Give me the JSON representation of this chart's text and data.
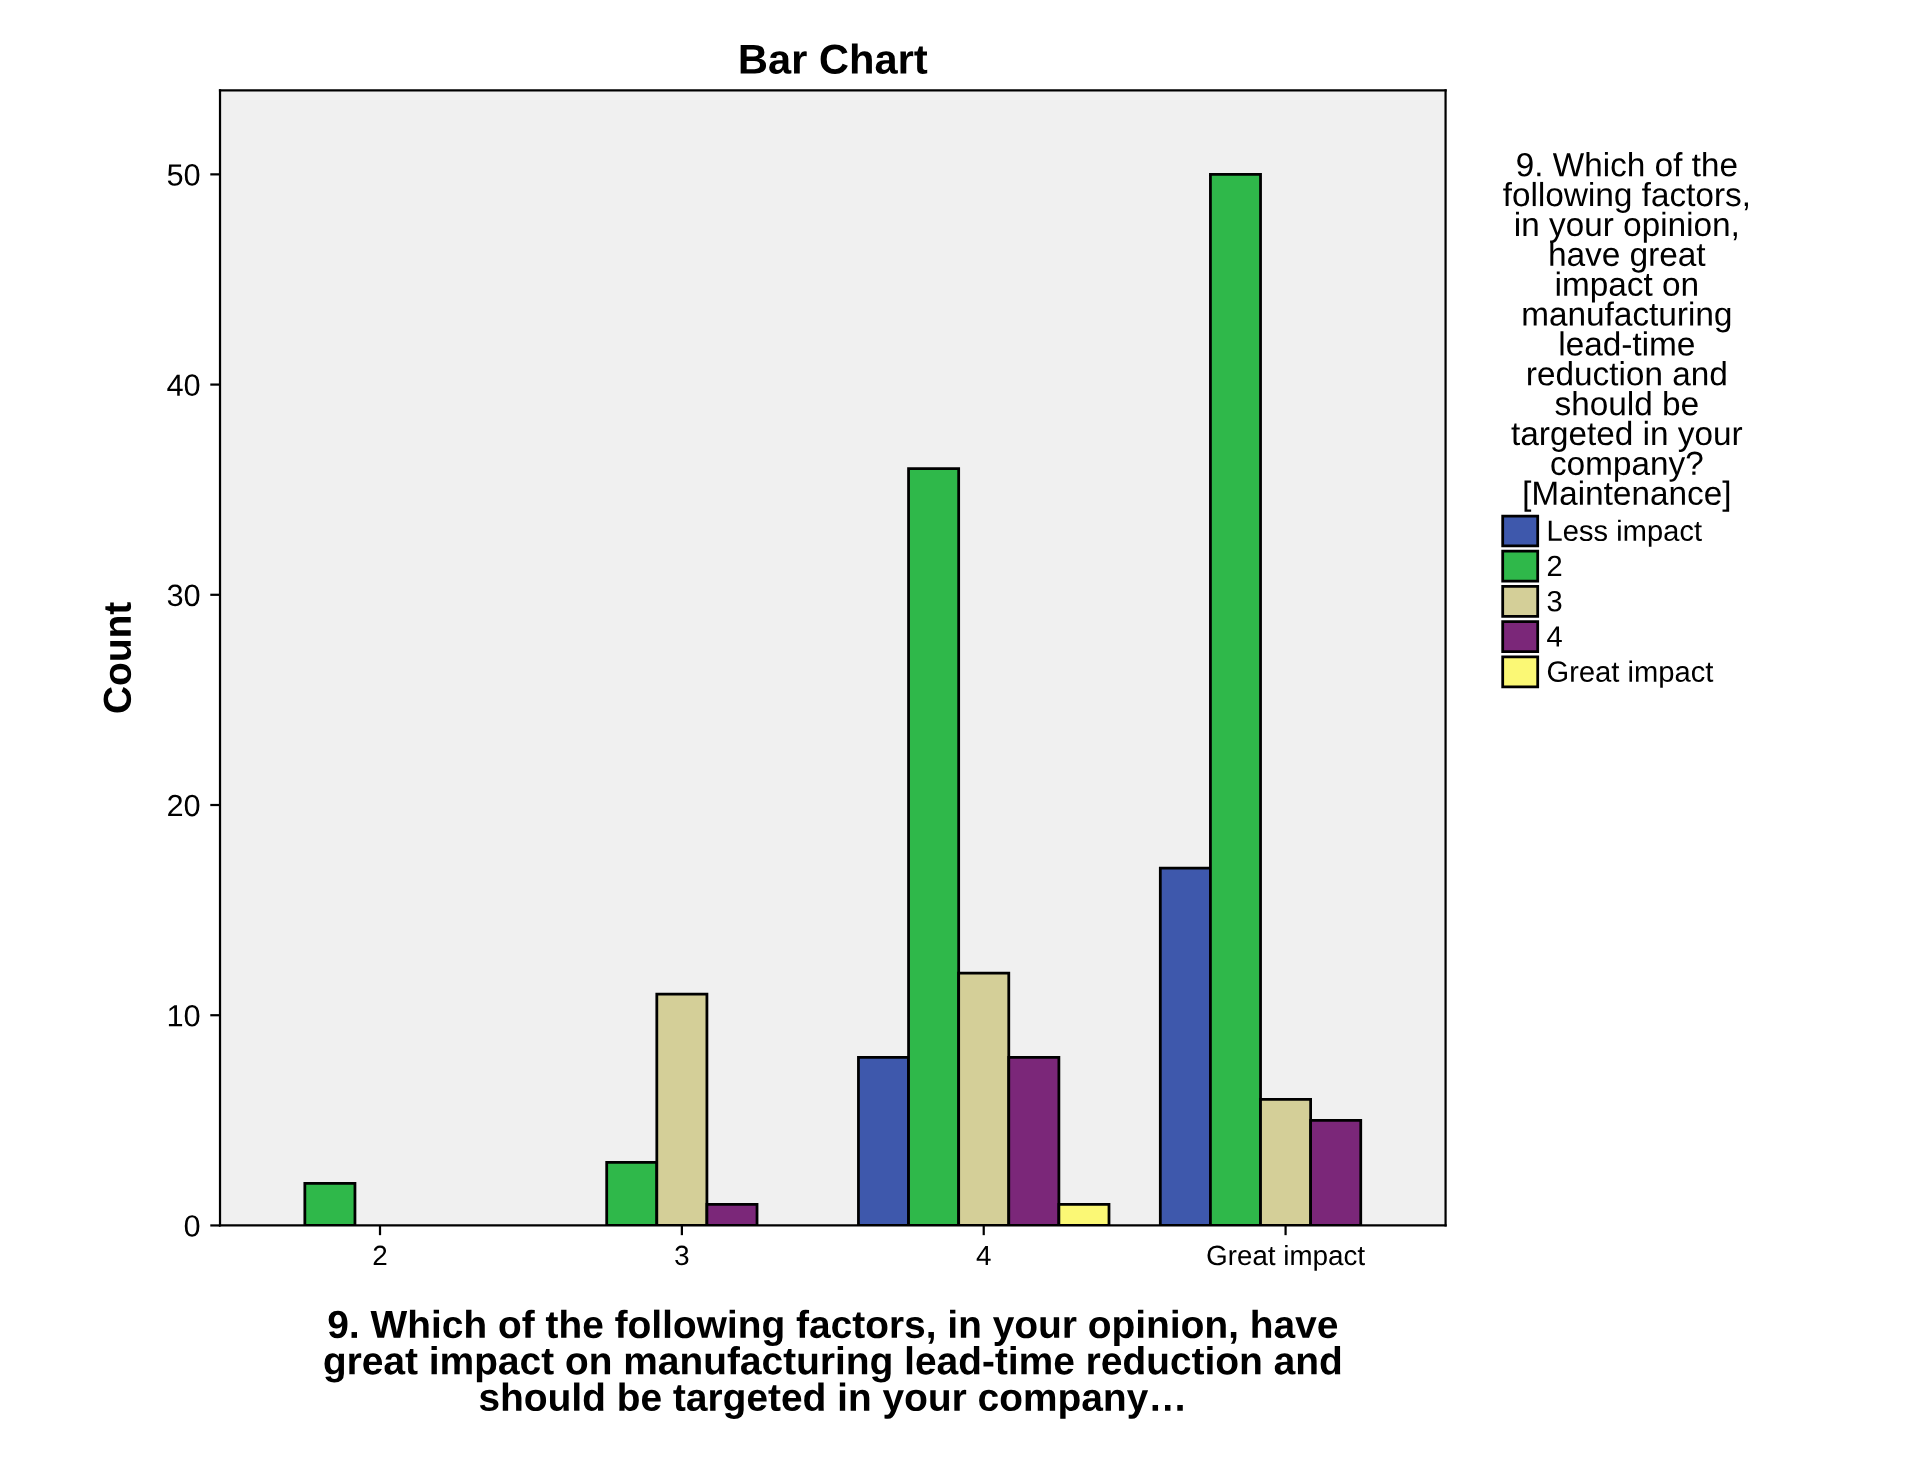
{
  "chart_data": {
    "type": "bar",
    "title": "Bar Chart",
    "xlabel": "9. Which of the following factors, in your opinion, have great impact on manufacturing lead-time reduction and should be targeted in your company…",
    "ylabel": "Count",
    "legend_title": "9. Which of the following factors, in your opinion, have great impact on manufacturing lead-time reduction and should be targeted in your company? [Maintenance]",
    "categories": [
      "2",
      "3",
      "4",
      "Great impact"
    ],
    "series": [
      {
        "name": "Less impact",
        "color": "#3e58ac",
        "values": [
          null,
          null,
          8,
          17
        ]
      },
      {
        "name": "2",
        "color": "#2fb84a",
        "values": [
          2,
          3,
          36,
          50
        ]
      },
      {
        "name": "3",
        "color": "#d4cf98",
        "values": [
          null,
          11,
          12,
          6
        ]
      },
      {
        "name": "4",
        "color": "#7b2779",
        "values": [
          null,
          1,
          8,
          5
        ]
      },
      {
        "name": "Great impact",
        "color": "#fbf875",
        "values": [
          null,
          null,
          1,
          null
        ]
      }
    ],
    "ylim": [
      0,
      54
    ],
    "yticks": [
      0,
      10,
      20,
      30,
      40,
      50
    ],
    "grid": false,
    "legend": "right"
  }
}
